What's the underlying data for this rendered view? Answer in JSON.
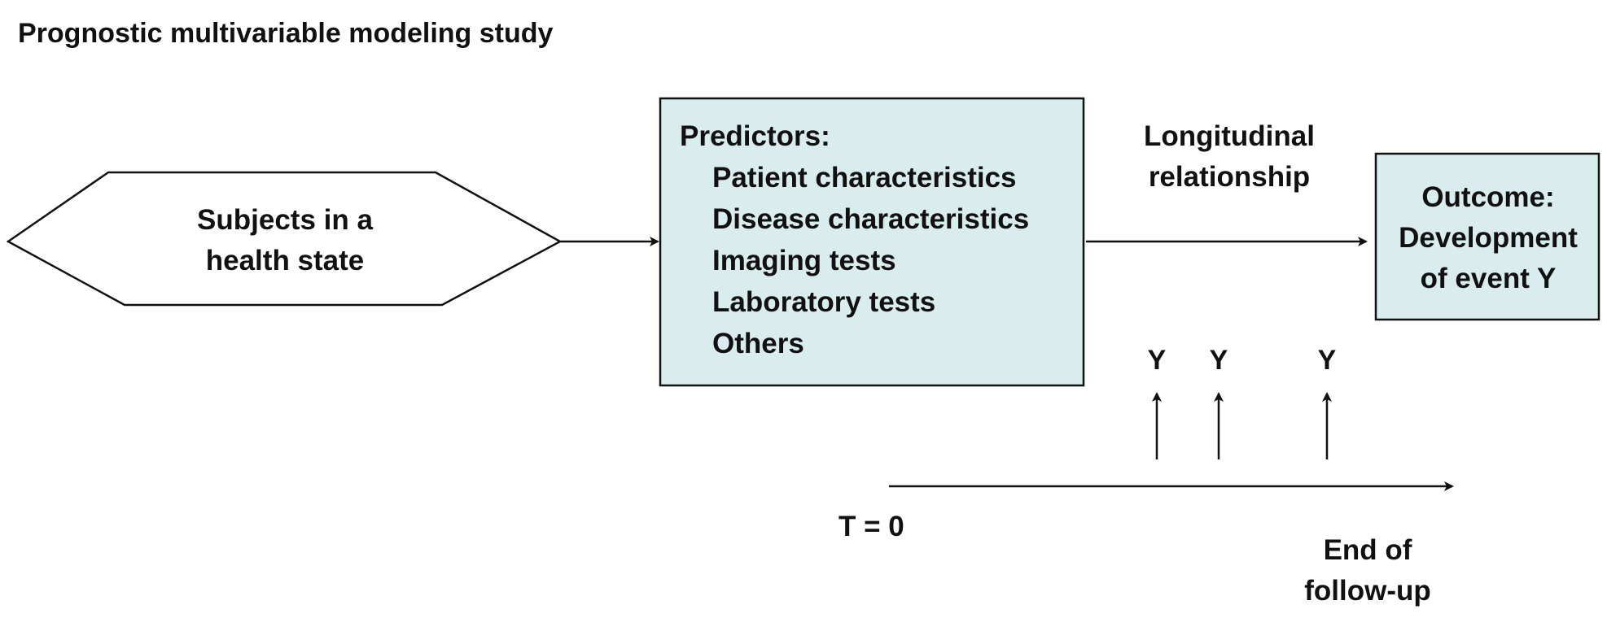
{
  "title": "Prognostic multivariable modeling study",
  "subjects_box": {
    "lines": [
      "Subjects in a",
      "health state"
    ]
  },
  "predictors_box": {
    "heading": "Predictors:",
    "items": [
      "Patient characteristics",
      "Disease characteristics",
      "Imaging tests",
      "Laboratory tests",
      "Others"
    ],
    "fill_color": "#d9ecee"
  },
  "relationship_label": {
    "lines": [
      "Longitudinal",
      "relationship"
    ]
  },
  "outcome_box": {
    "lines": [
      "Outcome:",
      "Development",
      "of event Y"
    ],
    "fill_color": "#d9ecee"
  },
  "timeline": {
    "start_label": "T = 0",
    "end_label_lines": [
      "End of",
      "follow-up"
    ],
    "event_markers": [
      "Y",
      "Y",
      "Y"
    ]
  }
}
